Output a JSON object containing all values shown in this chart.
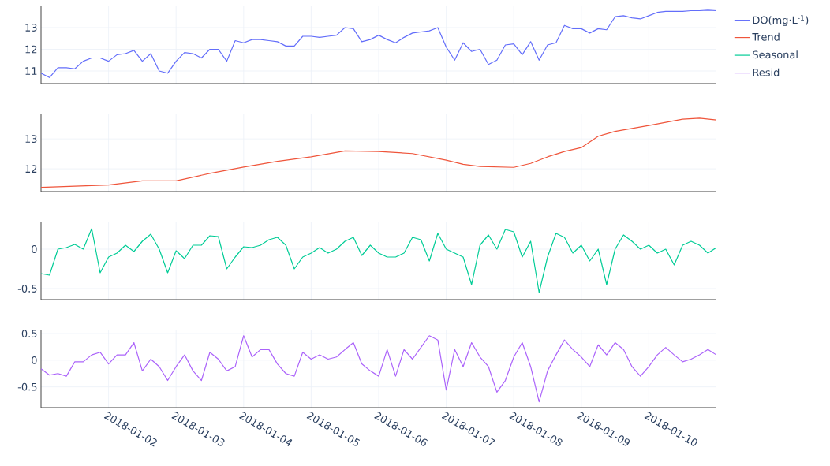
{
  "chart_data": [
    {
      "type": "line",
      "xlim": [
        "2018-01-01T00:00",
        "2018-01-11T00:00"
      ],
      "ylim": [
        10.42,
        13.98
      ],
      "xticks": [
        "2018-01-02",
        "2018-01-03",
        "2018-01-04",
        "2018-01-05",
        "2018-01-06",
        "2018-01-07",
        "2018-01-08",
        "2018-01-09",
        "2018-01-10"
      ],
      "yticks": [
        11,
        12,
        13
      ],
      "grid": true,
      "legend": "top right",
      "tick_labels": "y",
      "x": [
        "2018-01-01T00:00",
        "2018-01-01T03:00",
        "2018-01-01T06:00",
        "2018-01-01T09:00",
        "2018-01-01T12:00",
        "2018-01-01T15:00",
        "2018-01-01T18:00",
        "2018-01-01T21:00",
        "2018-01-02T00:00",
        "2018-01-02T03:00",
        "2018-01-02T06:00",
        "2018-01-02T09:00",
        "2018-01-02T12:00",
        "2018-01-02T15:00",
        "2018-01-02T18:00",
        "2018-01-02T21:00",
        "2018-01-03T00:00",
        "2018-01-03T03:00",
        "2018-01-03T06:00",
        "2018-01-03T09:00",
        "2018-01-03T12:00",
        "2018-01-03T15:00",
        "2018-01-03T18:00",
        "2018-01-03T21:00",
        "2018-01-04T00:00",
        "2018-01-04T03:00",
        "2018-01-04T06:00",
        "2018-01-04T09:00",
        "2018-01-04T12:00",
        "2018-01-04T15:00",
        "2018-01-04T18:00",
        "2018-01-04T21:00",
        "2018-01-05T00:00",
        "2018-01-05T03:00",
        "2018-01-05T06:00",
        "2018-01-05T09:00",
        "2018-01-05T12:00",
        "2018-01-05T15:00",
        "2018-01-05T18:00",
        "2018-01-05T21:00",
        "2018-01-06T00:00",
        "2018-01-06T03:00",
        "2018-01-06T06:00",
        "2018-01-06T09:00",
        "2018-01-06T12:00",
        "2018-01-06T15:00",
        "2018-01-06T18:00",
        "2018-01-06T21:00",
        "2018-01-07T00:00",
        "2018-01-07T03:00",
        "2018-01-07T06:00",
        "2018-01-07T09:00",
        "2018-01-07T12:00",
        "2018-01-07T15:00",
        "2018-01-07T18:00",
        "2018-01-07T21:00",
        "2018-01-08T00:00",
        "2018-01-08T03:00",
        "2018-01-08T06:00",
        "2018-01-08T09:00",
        "2018-01-08T12:00",
        "2018-01-08T15:00",
        "2018-01-08T18:00",
        "2018-01-08T21:00",
        "2018-01-09T00:00",
        "2018-01-09T03:00",
        "2018-01-09T06:00",
        "2018-01-09T09:00",
        "2018-01-09T12:00",
        "2018-01-09T15:00",
        "2018-01-09T18:00",
        "2018-01-09T21:00",
        "2018-01-10T00:00",
        "2018-01-10T03:00",
        "2018-01-10T06:00",
        "2018-01-10T09:00",
        "2018-01-10T12:00",
        "2018-01-10T15:00",
        "2018-01-10T18:00",
        "2018-01-10T21:00",
        "2018-01-11T00:00"
      ],
      "series": [
        {
          "name": "DO(mg·L$^{-1}$)",
          "color": "#636efa",
          "values": [
            10.9,
            10.7,
            11.15,
            11.15,
            11.1,
            11.45,
            11.6,
            11.6,
            11.45,
            11.75,
            11.8,
            11.95,
            11.45,
            11.8,
            11.0,
            10.9,
            11.45,
            11.85,
            11.8,
            11.6,
            12.0,
            12.0,
            11.45,
            12.4,
            12.3,
            12.45,
            12.45,
            12.4,
            12.35,
            12.15,
            12.15,
            12.6,
            12.6,
            12.55,
            12.6,
            12.65,
            13.0,
            12.95,
            12.35,
            12.45,
            12.65,
            12.45,
            12.3,
            12.55,
            12.75,
            12.8,
            12.85,
            13.0,
            12.1,
            11.5,
            12.3,
            11.9,
            12.0,
            11.3,
            11.5,
            12.2,
            12.25,
            11.75,
            12.35,
            11.5,
            12.2,
            12.3,
            13.1,
            12.95,
            12.95,
            12.75,
            12.95,
            12.9,
            13.5,
            13.55,
            13.45,
            13.4,
            13.55,
            13.7,
            13.75,
            13.75,
            13.75,
            13.78,
            13.78,
            13.8,
            13.78
          ]
        }
      ]
    },
    {
      "type": "line",
      "xlim": [
        "2018-01-01T00:00",
        "2018-01-11T00:00"
      ],
      "ylim": [
        11.24,
        13.82
      ],
      "xticks": [
        "2018-01-02",
        "2018-01-03",
        "2018-01-04",
        "2018-01-05",
        "2018-01-06",
        "2018-01-07",
        "2018-01-08",
        "2018-01-09",
        "2018-01-10"
      ],
      "yticks": [
        12,
        13
      ],
      "grid": true,
      "legend": "top right",
      "tick_labels": "y",
      "series": [
        {
          "name": "Trend",
          "color": "#ef553b",
          "x": [
            "2018-01-01T00:00",
            "2018-01-01T12:00",
            "2018-01-02T00:00",
            "2018-01-02T12:00",
            "2018-01-03T00:00",
            "2018-01-03T12:00",
            "2018-01-04T00:00",
            "2018-01-04T12:00",
            "2018-01-05T00:00",
            "2018-01-05T12:00",
            "2018-01-06T00:00",
            "2018-01-06T12:00",
            "2018-01-07T00:00",
            "2018-01-07T06:00",
            "2018-01-07T12:00",
            "2018-01-08T00:00",
            "2018-01-08T06:00",
            "2018-01-08T12:00",
            "2018-01-08T18:00",
            "2018-01-09T00:00",
            "2018-01-09T06:00",
            "2018-01-09T12:00",
            "2018-01-10T00:00",
            "2018-01-10T12:00",
            "2018-01-10T18:00",
            "2018-01-11T00:00"
          ],
          "values": [
            11.38,
            11.42,
            11.46,
            11.6,
            11.6,
            11.85,
            12.06,
            12.25,
            12.4,
            12.6,
            12.58,
            12.51,
            12.29,
            12.15,
            12.08,
            12.05,
            12.18,
            12.4,
            12.58,
            12.71,
            13.09,
            13.25,
            13.45,
            13.66,
            13.69,
            13.63
          ]
        }
      ]
    },
    {
      "type": "line",
      "xlim": [
        "2018-01-01T00:00",
        "2018-01-11T00:00"
      ],
      "ylim": [
        -0.64,
        0.34
      ],
      "xticks": [
        "2018-01-02",
        "2018-01-03",
        "2018-01-04",
        "2018-01-05",
        "2018-01-06",
        "2018-01-07",
        "2018-01-08",
        "2018-01-09",
        "2018-01-10"
      ],
      "yticks": [
        -0.5,
        0
      ],
      "grid": true,
      "legend": "top right",
      "tick_labels": "y",
      "x": [
        "2018-01-01T00:00",
        "2018-01-01T03:00",
        "2018-01-01T06:00",
        "2018-01-01T09:00",
        "2018-01-01T12:00",
        "2018-01-01T15:00",
        "2018-01-01T18:00",
        "2018-01-01T21:00",
        "2018-01-02T00:00",
        "2018-01-02T03:00",
        "2018-01-02T06:00",
        "2018-01-02T09:00",
        "2018-01-02T12:00",
        "2018-01-02T15:00",
        "2018-01-02T18:00",
        "2018-01-02T21:00",
        "2018-01-03T00:00",
        "2018-01-03T03:00",
        "2018-01-03T06:00",
        "2018-01-03T09:00",
        "2018-01-03T12:00",
        "2018-01-03T15:00",
        "2018-01-03T18:00",
        "2018-01-03T21:00",
        "2018-01-04T00:00",
        "2018-01-04T03:00",
        "2018-01-04T06:00",
        "2018-01-04T09:00",
        "2018-01-04T12:00",
        "2018-01-04T15:00",
        "2018-01-04T18:00",
        "2018-01-04T21:00",
        "2018-01-05T00:00",
        "2018-01-05T03:00",
        "2018-01-05T06:00",
        "2018-01-05T09:00",
        "2018-01-05T12:00",
        "2018-01-05T15:00",
        "2018-01-05T18:00",
        "2018-01-05T21:00",
        "2018-01-06T00:00",
        "2018-01-06T03:00",
        "2018-01-06T06:00",
        "2018-01-06T09:00",
        "2018-01-06T12:00",
        "2018-01-06T15:00",
        "2018-01-06T18:00",
        "2018-01-06T21:00",
        "2018-01-07T00:00",
        "2018-01-07T03:00",
        "2018-01-07T06:00",
        "2018-01-07T09:00",
        "2018-01-07T12:00",
        "2018-01-07T15:00",
        "2018-01-07T18:00",
        "2018-01-07T21:00",
        "2018-01-08T00:00",
        "2018-01-08T03:00",
        "2018-01-08T06:00",
        "2018-01-08T09:00",
        "2018-01-08T12:00",
        "2018-01-08T15:00",
        "2018-01-08T18:00",
        "2018-01-08T21:00",
        "2018-01-09T00:00",
        "2018-01-09T03:00",
        "2018-01-09T06:00",
        "2018-01-09T09:00",
        "2018-01-09T12:00",
        "2018-01-09T15:00",
        "2018-01-09T18:00",
        "2018-01-09T21:00",
        "2018-01-10T00:00",
        "2018-01-10T03:00",
        "2018-01-10T06:00",
        "2018-01-10T09:00",
        "2018-01-10T12:00",
        "2018-01-10T15:00",
        "2018-01-10T18:00",
        "2018-01-10T21:00",
        "2018-01-11T00:00"
      ],
      "series": [
        {
          "name": "Seasonal",
          "color": "#00cc96",
          "values": [
            -0.31,
            -0.33,
            0.0,
            0.02,
            0.06,
            0.0,
            0.26,
            -0.3,
            -0.1,
            -0.05,
            0.05,
            -0.03,
            0.1,
            0.19,
            0.0,
            -0.3,
            -0.02,
            -0.12,
            0.05,
            0.05,
            0.17,
            0.16,
            -0.25,
            -0.1,
            0.03,
            0.02,
            0.05,
            0.12,
            0.15,
            0.05,
            -0.25,
            -0.1,
            -0.05,
            0.02,
            -0.05,
            0.0,
            0.1,
            0.15,
            -0.08,
            0.05,
            -0.05,
            -0.1,
            -0.1,
            -0.05,
            0.15,
            0.12,
            -0.15,
            0.2,
            0.0,
            -0.05,
            -0.1,
            -0.45,
            0.05,
            0.18,
            0.0,
            0.25,
            0.22,
            -0.1,
            0.1,
            -0.55,
            -0.1,
            0.2,
            0.15,
            -0.05,
            0.05,
            -0.15,
            0.0,
            -0.45,
            0.0,
            0.18,
            0.1,
            0.0,
            0.05,
            -0.05,
            0.0,
            -0.2,
            0.05,
            0.1,
            0.05,
            -0.05,
            0.02
          ]
        }
      ]
    },
    {
      "type": "line",
      "xlim": [
        "2018-01-01T00:00",
        "2018-01-11T00:00"
      ],
      "ylim": [
        -0.89,
        0.56
      ],
      "xticks": [
        "2018-01-02",
        "2018-01-03",
        "2018-01-04",
        "2018-01-05",
        "2018-01-06",
        "2018-01-07",
        "2018-01-08",
        "2018-01-09",
        "2018-01-10"
      ],
      "yticks": [
        -0.5,
        0,
        0.5
      ],
      "grid": true,
      "legend": "top right",
      "x": [
        "2018-01-01T00:00",
        "2018-01-01T03:00",
        "2018-01-01T06:00",
        "2018-01-01T09:00",
        "2018-01-01T12:00",
        "2018-01-01T15:00",
        "2018-01-01T18:00",
        "2018-01-01T21:00",
        "2018-01-02T00:00",
        "2018-01-02T03:00",
        "2018-01-02T06:00",
        "2018-01-02T09:00",
        "2018-01-02T12:00",
        "2018-01-02T15:00",
        "2018-01-02T18:00",
        "2018-01-02T21:00",
        "2018-01-03T00:00",
        "2018-01-03T03:00",
        "2018-01-03T06:00",
        "2018-01-03T09:00",
        "2018-01-03T12:00",
        "2018-01-03T15:00",
        "2018-01-03T18:00",
        "2018-01-03T21:00",
        "2018-01-04T00:00",
        "2018-01-04T03:00",
        "2018-01-04T06:00",
        "2018-01-04T09:00",
        "2018-01-04T12:00",
        "2018-01-04T15:00",
        "2018-01-04T18:00",
        "2018-01-04T21:00",
        "2018-01-05T00:00",
        "2018-01-05T03:00",
        "2018-01-05T06:00",
        "2018-01-05T09:00",
        "2018-01-05T12:00",
        "2018-01-05T15:00",
        "2018-01-05T18:00",
        "2018-01-05T21:00",
        "2018-01-06T00:00",
        "2018-01-06T03:00",
        "2018-01-06T06:00",
        "2018-01-06T09:00",
        "2018-01-06T12:00",
        "2018-01-06T15:00",
        "2018-01-06T18:00",
        "2018-01-06T21:00",
        "2018-01-07T00:00",
        "2018-01-07T03:00",
        "2018-01-07T06:00",
        "2018-01-07T09:00",
        "2018-01-07T12:00",
        "2018-01-07T15:00",
        "2018-01-07T18:00",
        "2018-01-07T21:00",
        "2018-01-08T00:00",
        "2018-01-08T03:00",
        "2018-01-08T06:00",
        "2018-01-08T09:00",
        "2018-01-08T12:00",
        "2018-01-08T15:00",
        "2018-01-08T18:00",
        "2018-01-08T21:00",
        "2018-01-09T00:00",
        "2018-01-09T03:00",
        "2018-01-09T06:00",
        "2018-01-09T09:00",
        "2018-01-09T12:00",
        "2018-01-09T15:00",
        "2018-01-09T18:00",
        "2018-01-09T21:00",
        "2018-01-10T00:00",
        "2018-01-10T03:00",
        "2018-01-10T06:00",
        "2018-01-10T09:00",
        "2018-01-10T12:00",
        "2018-01-10T15:00",
        "2018-01-10T18:00",
        "2018-01-10T21:00",
        "2018-01-11T00:00"
      ],
      "series": [
        {
          "name": "Resid",
          "color": "#ab63fa",
          "values": [
            -0.16,
            -0.28,
            -0.25,
            -0.3,
            -0.03,
            -0.03,
            0.1,
            0.15,
            -0.07,
            0.1,
            0.1,
            0.33,
            -0.2,
            0.02,
            -0.12,
            -0.38,
            -0.12,
            0.1,
            -0.2,
            -0.38,
            0.15,
            0.02,
            -0.2,
            -0.12,
            0.46,
            0.06,
            0.2,
            0.2,
            -0.07,
            -0.25,
            -0.3,
            0.15,
            0.02,
            0.1,
            0.02,
            0.06,
            0.2,
            0.33,
            -0.07,
            -0.2,
            -0.3,
            0.2,
            -0.3,
            0.2,
            0.02,
            0.24,
            0.46,
            0.38,
            -0.56,
            0.2,
            -0.12,
            0.33,
            0.06,
            -0.12,
            -0.6,
            -0.38,
            0.06,
            0.33,
            -0.12,
            -0.78,
            -0.2,
            0.1,
            0.38,
            0.2,
            0.06,
            -0.12,
            0.29,
            0.1,
            0.33,
            0.2,
            -0.12,
            -0.3,
            -0.12,
            0.1,
            0.24,
            0.1,
            -0.03,
            0.02,
            0.1,
            0.2,
            0.1
          ]
        }
      ]
    }
  ]
}
